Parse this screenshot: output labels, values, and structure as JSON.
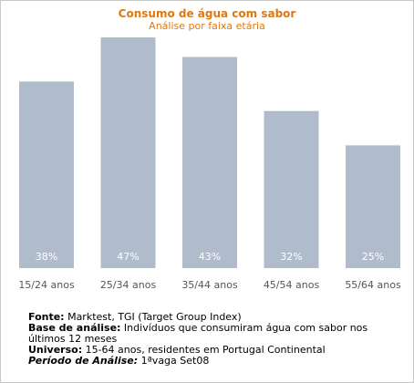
{
  "chart_data": {
    "type": "bar",
    "title": "Consumo de água com sabor",
    "subtitle": "Análise por faixa etária",
    "categories": [
      "15/24 anos",
      "25/34 anos",
      "35/44 anos",
      "45/54 anos",
      "55/64 anos"
    ],
    "values": [
      38,
      47,
      43,
      32,
      25
    ],
    "value_labels": [
      "38%",
      "47%",
      "43%",
      "32%",
      "25%"
    ],
    "ylim": [
      0,
      47
    ],
    "grid": false,
    "bar_color": "#b0bccb",
    "label_color": "#ffffff"
  },
  "notes": {
    "source_label": "Fonte:",
    "source_text": " Marktest, TGI (Target Group Index)",
    "base_label": "Base de análise:",
    "base_text": " Indivíduos que consumiram água com sabor nos últimos 12 meses",
    "universe_label": "Universo:",
    "universe_text": " 15-64 anos, residentes em Portugal Continental",
    "period_label": "Período de Análise:",
    "period_text": " 1ªvaga Set08"
  }
}
